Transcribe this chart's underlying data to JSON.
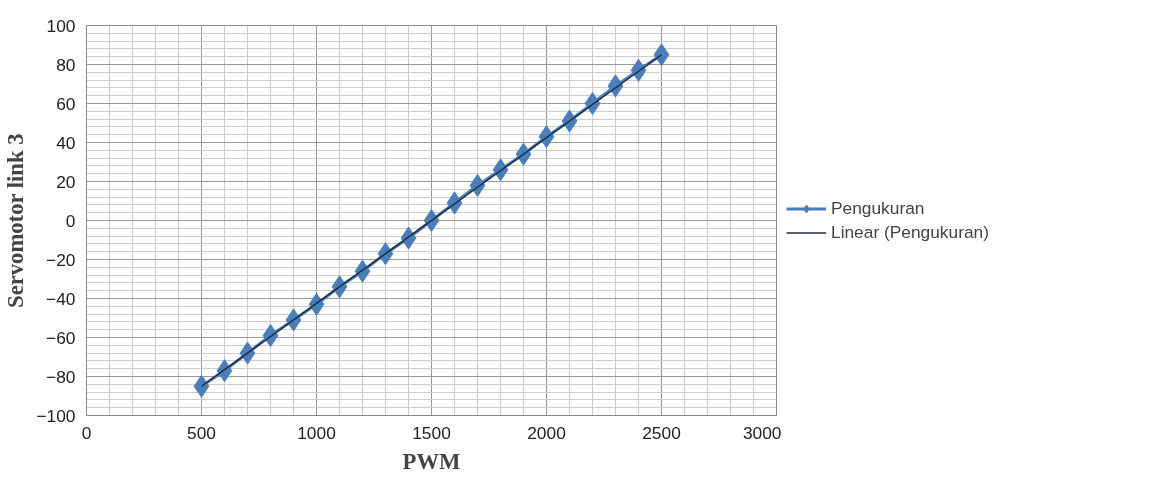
{
  "chart_data": {
    "type": "line",
    "xlabel": "PWM",
    "ylabel": "Servomotor link 3",
    "x": [
      500,
      600,
      700,
      800,
      900,
      1000,
      1100,
      1200,
      1300,
      1400,
      1500,
      1600,
      1700,
      1800,
      1900,
      2000,
      2100,
      2200,
      2300,
      2400,
      2500
    ],
    "series": [
      {
        "name": "Pengukuran",
        "color": "#4a7ebb",
        "values": [
          -85,
          -77,
          -68,
          -59,
          -51,
          -43,
          -34,
          -26,
          -17,
          -9,
          0,
          9,
          18,
          26,
          34,
          43,
          51,
          60,
          69,
          77,
          85
        ]
      },
      {
        "name": "Linear (Pengukuran)",
        "type": "line",
        "color": "#1f2d3d",
        "marker": "none",
        "x": [
          500,
          2500
        ],
        "values": [
          -85,
          85
        ]
      }
    ],
    "xlim": [
      0,
      3000
    ],
    "xticks": [
      0,
      500,
      1000,
      1500,
      2000,
      2500,
      3000
    ],
    "ylim": [
      -100,
      100
    ],
    "yticks": [
      -100,
      -80,
      -60,
      -40,
      -20,
      0,
      20,
      40,
      60,
      80,
      100
    ],
    "grid": true,
    "legend": "right",
    "marker": "diamond"
  }
}
